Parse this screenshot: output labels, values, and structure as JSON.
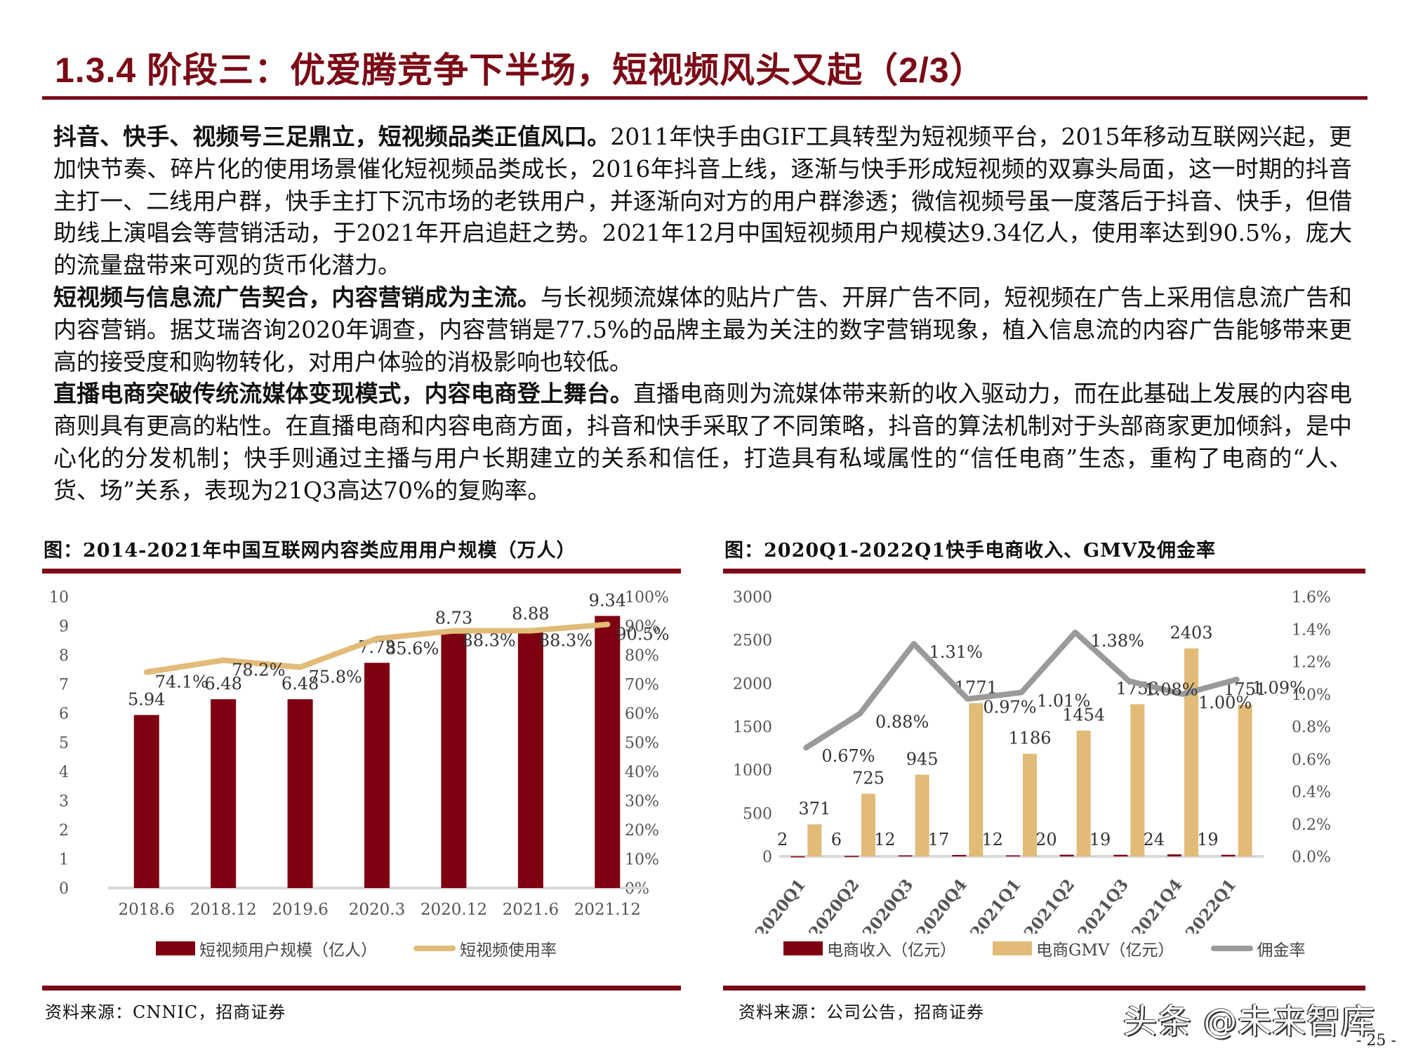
{
  "header": {
    "title": "1.3.4 阶段三：优爱腾竞争下半场，短视频风头又起（2/3）"
  },
  "body": {
    "paragraphs": [
      {
        "lead": "抖音、快手、视频号三足鼎立，短视频品类正值风口。",
        "text": "2011年快手由GIF工具转型为短视频平台，2015年移动互联网兴起，更加快节奏、碎片化的使用场景催化短视频品类成长，2016年抖音上线，逐渐与快手形成短视频的双寡头局面，这一时期的抖音主打一、二线用户群，快手主打下沉市场的老铁用户，并逐渐向对方的用户群渗透；微信视频号虽一度落后于抖音、快手，但借助线上演唱会等营销活动，于2021年开启追赶之势。2021年12月中国短视频用户规模达9.34亿人，使用率达到90.5%，庞大的流量盘带来可观的货币化潜力。"
      },
      {
        "lead": "短视频与信息流广告契合，内容营销成为主流。",
        "text": "与长视频流媒体的贴片广告、开屏广告不同，短视频在广告上采用信息流广告和内容营销。据艾瑞咨询2020年调查，内容营销是77.5%的品牌主最为关注的数字营销现象，植入信息流的内容广告能够带来更高的接受度和购物转化，对用户体验的消极影响也较低。"
      },
      {
        "lead": "直播电商突破传统流媒体变现模式，内容电商登上舞台。",
        "text": "直播电商则为流媒体带来新的收入驱动力，而在此基础上发展的内容电商则具有更高的粘性。在直播电商和内容电商方面，抖音和快手采取了不同策略，抖音的算法机制对于头部商家更加倾斜，是中心化的分发机制；快手则通过主播与用户长期建立的关系和信任，打造具有私域属性的“信任电商”生态，重构了电商的“人、货、场”关系，表现为21Q3高达70%的复购率。"
      }
    ]
  },
  "figures": {
    "left": {
      "title": "图：2014-2021年中国互联网内容类应用用户规模（万人）",
      "source": "资料来源：CNNIC，招商证券",
      "legend": [
        "短视频用户规模（亿人）",
        "短视频使用率"
      ]
    },
    "right": {
      "title": "图：2020Q1-2022Q1快手电商收入、GMV及佣金率",
      "source": "资料来源：公司公告，招商证券",
      "legend": [
        "电商收入（亿元）",
        "电商GMV（亿元）",
        "佣金率"
      ]
    }
  },
  "colors": {
    "brand_red": "#7a0a16",
    "bar_red": "#7f0011",
    "gold": "#e2bb78",
    "gray_line": "#9a9a9a",
    "axis": "#d9d9d9",
    "tick_text": "#555555"
  },
  "chart_data": [
    {
      "type": "bar",
      "title": "2014-2021年中国互联网内容类应用用户规模（万人）",
      "categories": [
        "2018.6",
        "2018.12",
        "2019.6",
        "2020.3",
        "2020.12",
        "2021.6",
        "2021.12"
      ],
      "series": [
        {
          "name": "短视频用户规模（亿人）",
          "type": "bar",
          "axis": "left",
          "values": [
            5.94,
            6.48,
            6.48,
            7.73,
            8.73,
            8.88,
            9.34
          ]
        },
        {
          "name": "短视频使用率",
          "type": "line",
          "axis": "right",
          "values": [
            74.1,
            78.2,
            75.8,
            85.6,
            88.3,
            88.3,
            90.5
          ],
          "labels": [
            "74.1%",
            "78.2%",
            "75.8%",
            "85.6%",
            "88.3%",
            "88.3%",
            "90.5%"
          ]
        }
      ],
      "ylim": [
        0,
        10
      ],
      "yticks": [
        "0",
        "1",
        "2",
        "3",
        "4",
        "5",
        "6",
        "7",
        "8",
        "9",
        "10"
      ],
      "y2lim": [
        0,
        100
      ],
      "y2ticks": [
        "0%",
        "10%",
        "20%",
        "30%",
        "40%",
        "50%",
        "60%",
        "70%",
        "80%",
        "90%",
        "100%"
      ],
      "legend_position": "bottom",
      "grid": false
    },
    {
      "type": "bar",
      "title": "2020Q1-2022Q1快手电商收入、GMV及佣金率",
      "categories": [
        "2020Q1",
        "2020Q2",
        "2020Q3",
        "2020Q4",
        "2021Q1",
        "2021Q2",
        "2021Q3",
        "2021Q4",
        "2022Q1"
      ],
      "series": [
        {
          "name": "电商收入（亿元）",
          "type": "bar",
          "axis": "left",
          "values": [
            2,
            6,
            12,
            17,
            12,
            20,
            19,
            24,
            19
          ]
        },
        {
          "name": "电商GMV（亿元）",
          "type": "bar",
          "axis": "left",
          "values": [
            371,
            725,
            945,
            1771,
            1186,
            1454,
            1758,
            2403,
            1751
          ]
        },
        {
          "name": "佣金率",
          "type": "line",
          "axis": "right",
          "values": [
            0.67,
            0.88,
            1.31,
            0.97,
            1.01,
            1.38,
            1.08,
            1.0,
            1.09
          ],
          "labels": [
            "0.67%",
            "0.88%",
            "1.31%",
            "0.97%",
            "1.01%",
            "1.38%",
            "1.08%",
            "1.00%",
            "1.09%"
          ]
        }
      ],
      "ylim": [
        0,
        3000
      ],
      "yticks": [
        "0",
        "500",
        "1000",
        "1500",
        "2000",
        "2500",
        "3000"
      ],
      "y2lim": [
        0,
        1.6
      ],
      "y2ticks": [
        "0.0%",
        "0.2%",
        "0.4%",
        "0.6%",
        "0.8%",
        "1.0%",
        "1.2%",
        "1.4%",
        "1.6%"
      ],
      "legend_position": "bottom",
      "grid": false
    }
  ],
  "footer": {
    "watermark": "头条 @未来智库",
    "page_number": "- 25 -"
  }
}
